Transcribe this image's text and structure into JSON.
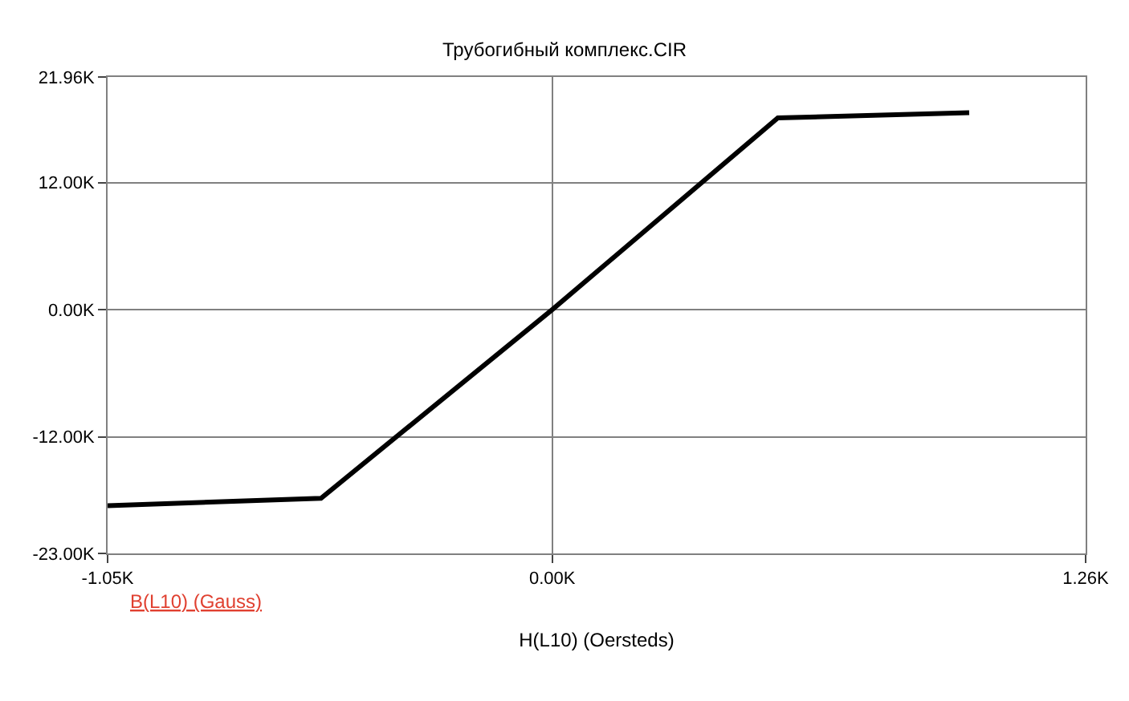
{
  "chart_data": {
    "type": "line",
    "title": "Трубогибный комплекс.CIR",
    "xlabel": "H(L10) (Oersteds)",
    "annotations": [
      "B(L10) (Gauss)"
    ],
    "x": [
      -1050,
      -546,
      0,
      533,
      985
    ],
    "series": [
      {
        "color": "#000000",
        "values": [
          -18500,
          -17800,
          0,
          18100,
          18600
        ]
      }
    ],
    "xlim": [
      -1050,
      1260
    ],
    "xticks": [
      {
        "value": -1050,
        "label": "-1.05K"
      },
      {
        "value": 0,
        "label": "0.00K"
      },
      {
        "value": 1260,
        "label": "1.26K"
      }
    ],
    "ylim": [
      -23000,
      21960
    ],
    "yticks": [
      {
        "value": -23000,
        "label": "-23.00K"
      },
      {
        "value": -12000,
        "label": "-12.00K"
      },
      {
        "value": 0,
        "label": "0.00K"
      },
      {
        "value": 12000,
        "label": "12.00K"
      },
      {
        "value": 21960,
        "label": "21.96K"
      }
    ],
    "grid": true,
    "legend": false,
    "marker": "none",
    "line_style": "solid"
  }
}
